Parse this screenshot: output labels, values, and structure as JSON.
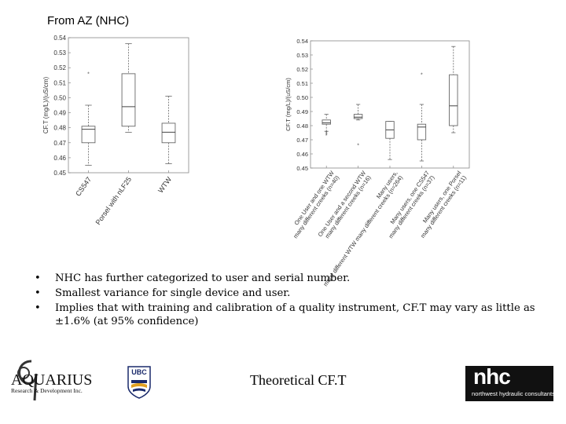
{
  "slide": {
    "source_label": "From AZ (NHC)",
    "bullets": [
      "NHC has further categorized to user and serial number.",
      "Smallest variance for single device and user.",
      "Implies that with training and calibration of a quality instrument, CF.T may vary as little as ±1.6% (at 95% confidence)"
    ],
    "footer_center": "Theoretical CF.T",
    "logo_aquarius_text": "AQUARIUS",
    "logo_aquarius_sub": "Research & Development Inc.",
    "logo_ubc_text": "UBC",
    "logo_nhc_text": "nhc",
    "logo_nhc_sub": "northwest hydraulic consultants"
  },
  "chart_data": [
    {
      "type": "boxplot",
      "title": "",
      "xlabel": "",
      "ylabel": "CF.T (mg/L)/(uS/cm)",
      "ylim": [
        0.45,
        0.54
      ],
      "yticks": [
        0.45,
        0.46,
        0.47,
        0.48,
        0.49,
        0.5,
        0.51,
        0.52,
        0.53,
        0.54
      ],
      "ytick_labels": [
        "0.45",
        "0.46",
        "0.47",
        "0.48",
        "0.49",
        "0.50",
        "0.51",
        "0.52",
        "0.53",
        "0.54"
      ],
      "grid": false,
      "categories": [
        "CS547",
        "Porsel with nLF25",
        "WTW"
      ],
      "boxes": [
        {
          "min": 0.455,
          "q1": 0.47,
          "median": 0.479,
          "q3": 0.481,
          "max": 0.495,
          "outliers": [
            0.516
          ]
        },
        {
          "min": 0.477,
          "q1": 0.481,
          "median": 0.494,
          "q3": 0.516,
          "max": 0.536,
          "outliers": []
        },
        {
          "min": 0.456,
          "q1": 0.47,
          "median": 0.477,
          "q3": 0.483,
          "max": 0.501,
          "outliers": []
        }
      ]
    },
    {
      "type": "boxplot",
      "title": "",
      "xlabel": "",
      "ylabel": "CF.T (mg/L)/(uS/cm)",
      "ylim": [
        0.45,
        0.54
      ],
      "yticks": [
        0.45,
        0.46,
        0.47,
        0.48,
        0.49,
        0.5,
        0.51,
        0.52,
        0.53,
        0.54
      ],
      "ytick_labels": [
        "0.45",
        "0.46",
        "0.47",
        "0.48",
        "0.49",
        "0.50",
        "0.51",
        "0.52",
        "0.53",
        "0.54"
      ],
      "grid": false,
      "categories": [
        "One User and one WTW many different creeks (n=40)",
        "One User and a second WTW many different creeks (n=16)",
        "Many users, many different WTW many different creeks (n=264)",
        "Many users, one CS547 many different creeks (n=37)",
        "Many users, one Porsel many different creeks (n=11)"
      ],
      "boxes": [
        {
          "min": 0.476,
          "q1": 0.481,
          "median": 0.482,
          "q3": 0.484,
          "max": 0.488,
          "outliers": [
            0.473,
            0.474,
            0.475
          ]
        },
        {
          "min": 0.484,
          "q1": 0.485,
          "median": 0.486,
          "q3": 0.488,
          "max": 0.495,
          "outliers": [
            0.466
          ]
        },
        {
          "min": 0.456,
          "q1": 0.471,
          "median": 0.477,
          "q3": 0.483,
          "max": 0.483,
          "outliers": []
        },
        {
          "min": 0.455,
          "q1": 0.47,
          "median": 0.479,
          "q3": 0.481,
          "max": 0.495,
          "outliers": [
            0.516
          ]
        },
        {
          "min": 0.475,
          "q1": 0.48,
          "median": 0.494,
          "q3": 0.516,
          "max": 0.536,
          "outliers": []
        }
      ]
    }
  ]
}
